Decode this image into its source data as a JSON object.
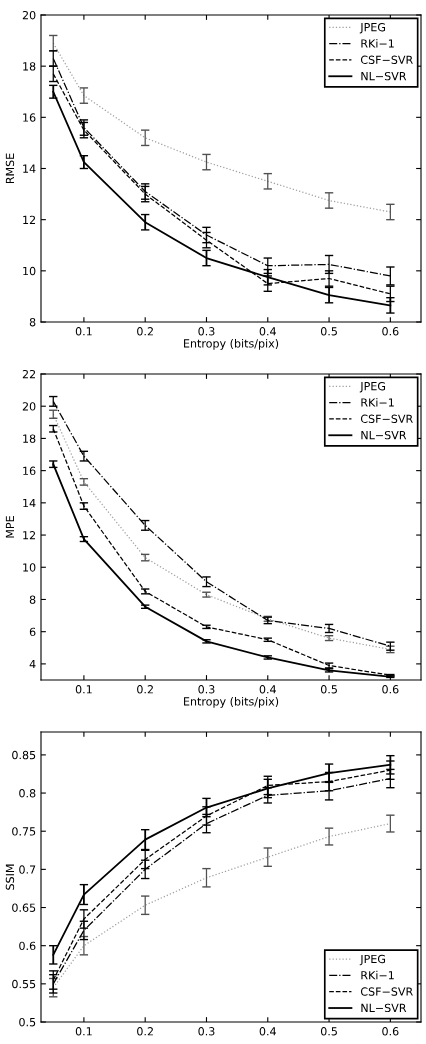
{
  "chart_data": [
    {
      "type": "line",
      "xlabel": "Entropy (bits/pix)",
      "ylabel": "RMSE",
      "x": [
        0.05,
        0.1,
        0.2,
        0.3,
        0.4,
        0.5,
        0.6
      ],
      "xlim": [
        0.03,
        0.65
      ],
      "xticks": [
        {
          "value": 0.1,
          "label": "0.1"
        },
        {
          "value": 0.2,
          "label": "0.2"
        },
        {
          "value": 0.3,
          "label": "0.3"
        },
        {
          "value": 0.4,
          "label": "0.4"
        },
        {
          "value": 0.5,
          "label": "0.5"
        },
        {
          "value": 0.6,
          "label": "0.6"
        }
      ],
      "ylim": [
        8,
        20
      ],
      "yticks": [
        8,
        10,
        12,
        14,
        16,
        18,
        20
      ],
      "grid": false,
      "legend": "top right",
      "series": [
        {
          "name": "JPEG",
          "color": "#a0a0a0",
          "line_style": "dotted",
          "values": [
            18.9,
            16.85,
            15.2,
            14.25,
            13.5,
            12.75,
            12.3
          ],
          "errors": [
            0.3,
            0.3,
            0.3,
            0.3,
            0.3,
            0.3,
            0.3
          ]
        },
        {
          "name": "RKi−1",
          "color": "#000000",
          "line_style": "dashdot",
          "values": [
            18.3,
            15.6,
            13.1,
            11.4,
            10.2,
            10.25,
            9.8
          ],
          "errors": [
            0.3,
            0.3,
            0.3,
            0.3,
            0.3,
            0.35,
            0.35
          ]
        },
        {
          "name": "CSF−SVR",
          "color": "#000000",
          "line_style": "dashed",
          "values": [
            17.7,
            15.5,
            13.0,
            11.2,
            9.5,
            9.7,
            9.1
          ],
          "errors": [
            0.3,
            0.3,
            0.3,
            0.3,
            0.3,
            0.3,
            0.3
          ]
        },
        {
          "name": "NL−SVR",
          "color": "#000000",
          "line_style": "solid",
          "values": [
            17.0,
            14.25,
            11.9,
            10.5,
            9.75,
            9.05,
            8.65
          ],
          "errors": [
            0.25,
            0.25,
            0.3,
            0.3,
            0.3,
            0.3,
            0.3
          ]
        }
      ]
    },
    {
      "type": "line",
      "xlabel": "Entropy (bits/pix)",
      "ylabel": "MPE",
      "x": [
        0.05,
        0.1,
        0.2,
        0.3,
        0.4,
        0.5,
        0.6
      ],
      "xlim": [
        0.03,
        0.65
      ],
      "xticks": [
        {
          "value": 0.1,
          "label": "0.1"
        },
        {
          "value": 0.2,
          "label": "0.2"
        },
        {
          "value": 0.3,
          "label": "0.3"
        },
        {
          "value": 0.4,
          "label": "0.4"
        },
        {
          "value": 0.5,
          "label": "0.5"
        },
        {
          "value": 0.6,
          "label": "0.6"
        }
      ],
      "ylim": [
        3,
        22
      ],
      "yticks": [
        4,
        6,
        8,
        10,
        12,
        14,
        16,
        18,
        20,
        22
      ],
      "grid": false,
      "legend": "top right",
      "series": [
        {
          "name": "JPEG",
          "color": "#a0a0a0",
          "line_style": "dotted",
          "values": [
            19.5,
            15.3,
            10.6,
            8.3,
            6.8,
            5.6,
            4.9
          ],
          "errors": [
            0.25,
            0.2,
            0.2,
            0.15,
            0.15,
            0.15,
            0.2
          ]
        },
        {
          "name": "RKi−1",
          "color": "#000000",
          "line_style": "dashdot",
          "values": [
            20.3,
            16.9,
            12.6,
            9.1,
            6.7,
            6.2,
            5.1
          ],
          "errors": [
            0.3,
            0.3,
            0.3,
            0.3,
            0.2,
            0.25,
            0.25
          ]
        },
        {
          "name": "CSF−SVR",
          "color": "#000000",
          "line_style": "dashed",
          "values": [
            18.6,
            13.8,
            8.5,
            6.3,
            5.5,
            3.9,
            3.3
          ],
          "errors": [
            0.2,
            0.2,
            0.15,
            0.1,
            0.1,
            0.15,
            0.04
          ]
        },
        {
          "name": "NL−SVR",
          "color": "#000000",
          "line_style": "solid",
          "values": [
            16.4,
            11.75,
            7.55,
            5.4,
            4.4,
            3.6,
            3.2
          ],
          "errors": [
            0.2,
            0.15,
            0.1,
            0.1,
            0.1,
            0.1,
            0.04
          ]
        }
      ]
    },
    {
      "type": "line",
      "ylabel": "SSIM",
      "x": [
        0.05,
        0.1,
        0.2,
        0.3,
        0.4,
        0.5,
        0.6
      ],
      "xlim": [
        0.03,
        0.65
      ],
      "xticks": [
        {
          "value": 0.1,
          "label": "0.1"
        },
        {
          "value": 0.2,
          "label": "0.2"
        },
        {
          "value": 0.3,
          "label": "0.3"
        },
        {
          "value": 0.4,
          "label": "0.4"
        },
        {
          "value": 0.5,
          "label": "0.5"
        },
        {
          "value": 0.6,
          "label": "0.6"
        }
      ],
      "ylim": [
        0.5,
        0.88
      ],
      "yticks": [
        0.5,
        0.55,
        0.6,
        0.65,
        0.7,
        0.75,
        0.8,
        0.85
      ],
      "grid": false,
      "legend": "bottom right",
      "series": [
        {
          "name": "JPEG",
          "color": "#a0a0a0",
          "line_style": "dotted",
          "values": [
            0.545,
            0.6,
            0.653,
            0.689,
            0.716,
            0.743,
            0.76
          ],
          "errors": [
            0.012,
            0.012,
            0.012,
            0.012,
            0.012,
            0.011,
            0.011
          ]
        },
        {
          "name": "RKi−1",
          "color": "#000000",
          "line_style": "dashdot",
          "values": [
            0.55,
            0.62,
            0.7,
            0.76,
            0.797,
            0.803,
            0.819
          ],
          "errors": [
            0.012,
            0.012,
            0.012,
            0.012,
            0.01,
            0.012,
            0.012
          ]
        },
        {
          "name": "CSF−SVR",
          "color": "#000000",
          "line_style": "dashed",
          "values": [
            0.555,
            0.635,
            0.713,
            0.77,
            0.81,
            0.815,
            0.83
          ],
          "errors": [
            0.012,
            0.012,
            0.012,
            0.012,
            0.012,
            0.012,
            0.012
          ]
        },
        {
          "name": "NL−SVR",
          "color": "#000000",
          "line_style": "solid",
          "values": [
            0.588,
            0.667,
            0.739,
            0.781,
            0.806,
            0.826,
            0.837
          ],
          "errors": [
            0.012,
            0.013,
            0.013,
            0.012,
            0.012,
            0.012,
            0.012
          ]
        }
      ]
    }
  ]
}
